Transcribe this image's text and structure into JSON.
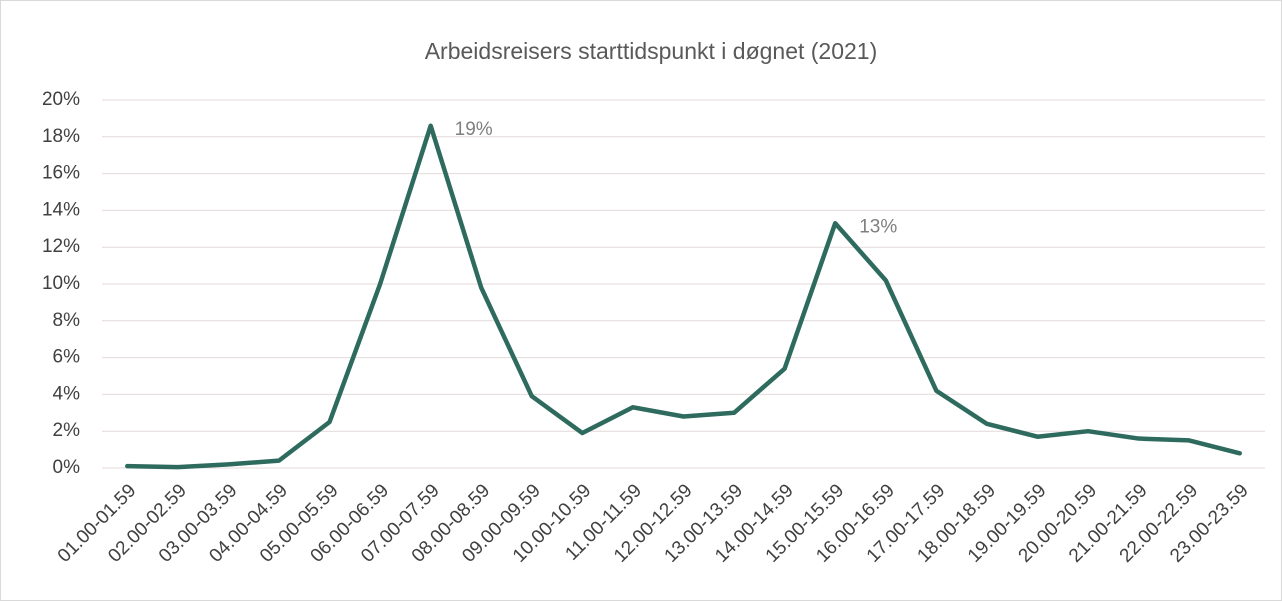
{
  "chart_data": {
    "type": "line",
    "title": "Arbeidsreisers starttidspunkt i døgnet (2021)",
    "categories": [
      "01.00-01.59",
      "02.00-02.59",
      "03.00-03.59",
      "04.00-04.59",
      "05.00-05.59",
      "06.00-06.59",
      "07.00-07.59",
      "08.00-08.59",
      "09.00-09.59",
      "10.00-10.59",
      "11.00-11.59",
      "12.00-12.59",
      "13.00-13.59",
      "14.00-14.59",
      "15.00-15.59",
      "16.00-16.59",
      "17.00-17.59",
      "18.00-18.59",
      "19.00-19.59",
      "20.00-20.59",
      "21.00-21.59",
      "22.00-22.59",
      "23.00-23.59"
    ],
    "values": [
      0.1,
      0.05,
      0.2,
      0.4,
      2.5,
      10.0,
      18.6,
      9.8,
      3.9,
      1.9,
      3.3,
      2.8,
      3.0,
      5.4,
      13.3,
      10.2,
      4.2,
      2.4,
      1.7,
      2.0,
      1.6,
      1.5,
      0.8
    ],
    "value_labels": [
      null,
      null,
      null,
      null,
      null,
      null,
      "19%",
      null,
      null,
      null,
      null,
      null,
      null,
      null,
      "13%",
      null,
      null,
      null,
      null,
      null,
      null,
      null,
      null
    ],
    "color": "#2e6b5e",
    "ylim": [
      0,
      20
    ],
    "yticks": [
      {
        "value": 0,
        "label": "0%"
      },
      {
        "value": 2,
        "label": "2%"
      },
      {
        "value": 4,
        "label": "4%"
      },
      {
        "value": 6,
        "label": "6%"
      },
      {
        "value": 8,
        "label": "8%"
      },
      {
        "value": 10,
        "label": "10%"
      },
      {
        "value": 12,
        "label": "12%"
      },
      {
        "value": 14,
        "label": "14%"
      },
      {
        "value": 16,
        "label": "16%"
      },
      {
        "value": 18,
        "label": "18%"
      },
      {
        "value": 20,
        "label": "20%"
      }
    ],
    "grid": true
  }
}
